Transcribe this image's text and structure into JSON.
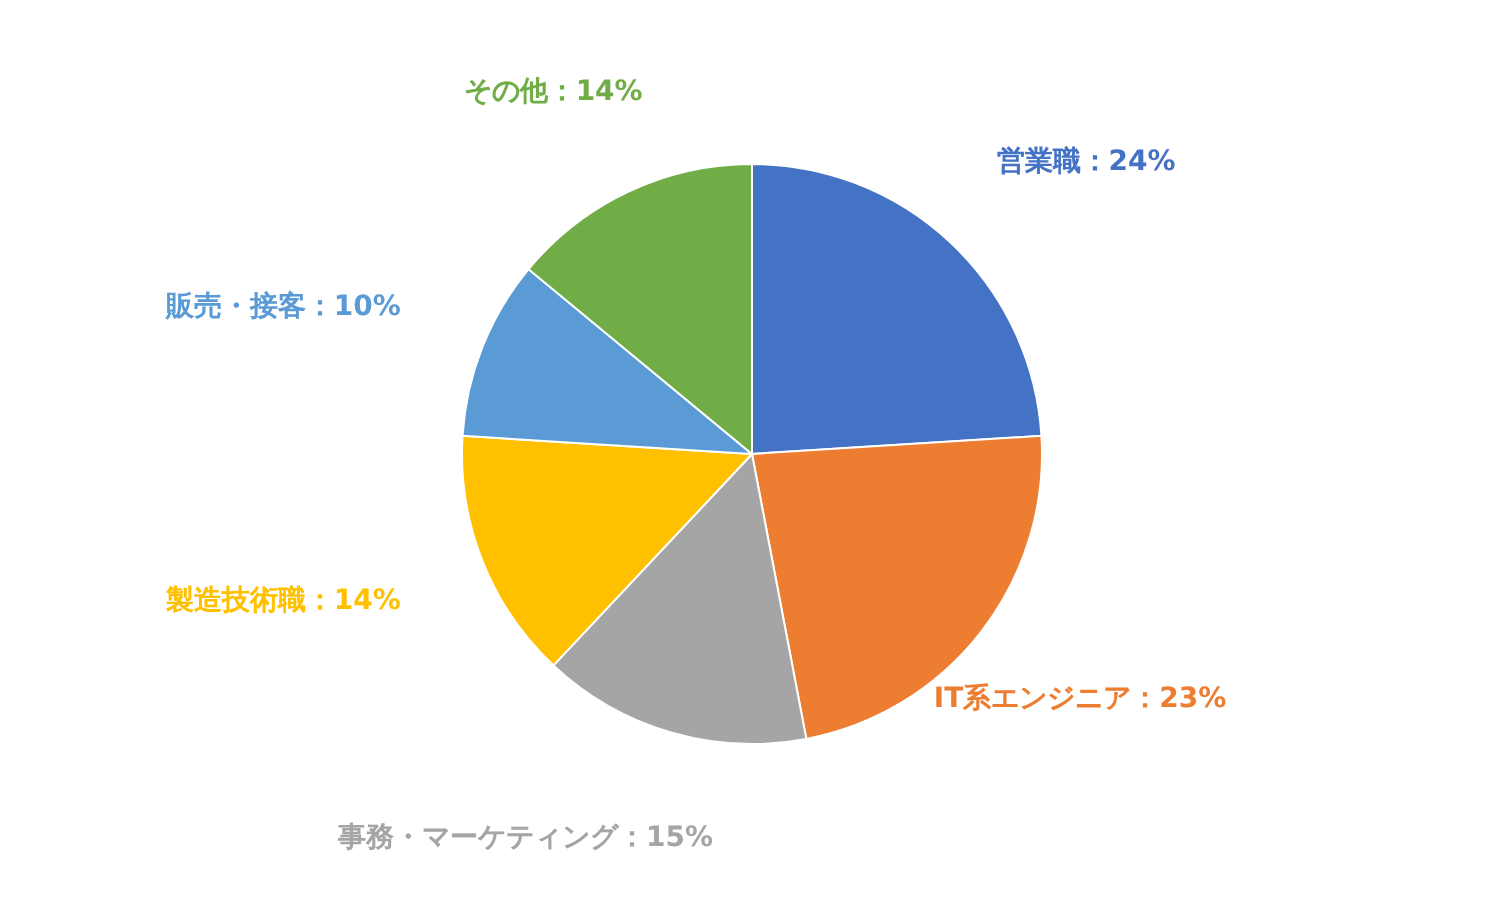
{
  "chart_data": {
    "type": "pie",
    "categories": [
      "営業職",
      "IT系エンジニア",
      "事務・マーケティング",
      "製造技術職",
      "販売・接客",
      "その他"
    ],
    "values": [
      24,
      23,
      15,
      14,
      10,
      14
    ],
    "colors": [
      "#4472c4",
      "#ed7d31",
      "#a5a5a5",
      "#ffc000",
      "#5b9bd5",
      "#70ad47"
    ],
    "value_labels": [
      "：24%",
      "：23%",
      "：15%",
      "：14%",
      "：10%",
      "：14%"
    ],
    "legend": false
  }
}
